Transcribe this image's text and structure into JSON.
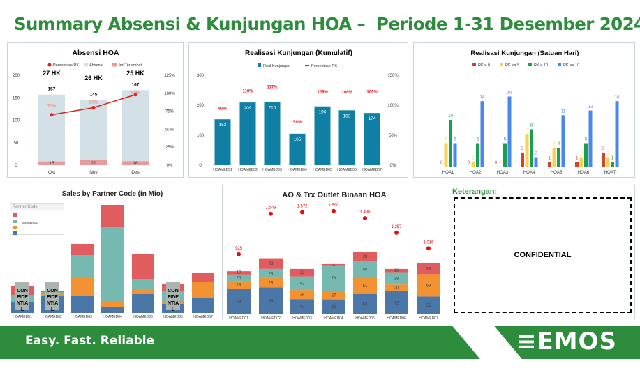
{
  "header": {
    "title": "Summary Absensi & Kunjungan HOA –  Periode 1-31 Desember 2024"
  },
  "footer": {
    "slogan": "Easy. Fast. Reliable",
    "logo": "EMOS",
    "brand_color": "#2d8d3c"
  },
  "keterangan": {
    "title": "Keterangan:",
    "content": "CONFIDENTIAL"
  },
  "chart_data": [
    {
      "id": "absensi",
      "type": "bar",
      "title": "Absensi HOA",
      "categories": [
        "Okt",
        "Nov",
        "Des"
      ],
      "hk": [
        "27 HK",
        "26 HK",
        "25 HK"
      ],
      "legend": [
        "Persentase RK",
        "Absensi",
        "Jml Terlambat"
      ],
      "series": [
        {
          "name": "Absensi",
          "values": [
            157,
            145,
            167
          ],
          "color": "#d3e0e5"
        },
        {
          "name": "Jml Terlambat",
          "values": [
            15,
            21,
            16
          ],
          "color": "#eb9a9c"
        },
        {
          "name": "Persentase RK",
          "values": [
            70,
            80,
            98
          ],
          "unit": "%",
          "color": "#e01e1e"
        }
      ],
      "ylim": [
        0,
        200
      ],
      "yticks": [
        0,
        50,
        100,
        150,
        200
      ],
      "y2lim": [
        0,
        125
      ],
      "y2ticks": [
        "0%",
        "25%",
        "50%",
        "75%",
        "100%",
        "125%"
      ]
    },
    {
      "id": "kumulatif",
      "type": "bar",
      "title": "Realisasi Kunjungan (Kumulatif)",
      "categories": [
        "HOAMED01",
        "HOAMED02",
        "HOAMED03",
        "HOAMED04",
        "HOAMED05",
        "HOAMED06",
        "HOAMED07"
      ],
      "legend": [
        "Real Kunjungan",
        "Persentase RK"
      ],
      "series": [
        {
          "name": "Real Kunjungan",
          "values": [
            153,
            209,
            210,
            105,
            196,
            183,
            174
          ],
          "color": "#0f7fa3"
        },
        {
          "name": "Persentase RK",
          "values": [
            81,
            110,
            117,
            58,
            109,
            108,
            109
          ],
          "unit": "%",
          "color": "#e01e1e"
        }
      ],
      "ylim": [
        0,
        300
      ],
      "yticks": [
        0,
        100,
        200,
        300
      ],
      "y2lim": [
        0,
        150
      ],
      "y2ticks": [
        "0%",
        "50%",
        "100%",
        "150%"
      ]
    },
    {
      "id": "satuan_hari",
      "type": "bar",
      "title": "Realisasi Kunjungan (Satuan Hari)",
      "categories": [
        "HOA1",
        "HOA2",
        "HOA3",
        "HOA4",
        "HOA5",
        "HOA6",
        "HOA7"
      ],
      "series": [
        {
          "name": "RK = 0",
          "values": [
            0,
            0,
            0,
            3,
            1,
            1,
            3
          ],
          "color": "#d6402b"
        },
        {
          "name": "RK <= 5",
          "values": [
            5,
            1,
            0,
            7,
            4,
            2,
            2
          ],
          "color": "#fcd054"
        },
        {
          "name": "RK < 10",
          "values": [
            10,
            5,
            5,
            8,
            4,
            5,
            1
          ],
          "color": "#16a150"
        },
        {
          "name": "RK >= 10",
          "values": [
            5,
            14,
            15,
            2,
            11,
            12,
            14
          ],
          "color": "#4a87ea"
        }
      ],
      "ylim": [
        0,
        15
      ]
    },
    {
      "id": "sales",
      "type": "bar",
      "stacked": true,
      "title": "Sales by Partner Code (in Mio)",
      "legend_title": "Partner Code",
      "legend_label": "CONFIDENTIAL",
      "confidential_label": "CON FIDE NTIA L",
      "categories": [
        "HOAMED01",
        "HOAMED02",
        "HOAMED03",
        "HOAMED04",
        "HOAMED05",
        "HOAMED06",
        "HOAMED07"
      ],
      "confidential_bars": [
        0,
        1,
        5
      ],
      "series": [
        {
          "values": [
            15,
            24,
            24,
            8,
            27,
            13,
            21
          ],
          "color": "#4a77a8"
        },
        {
          "values": [
            2,
            4,
            26,
            9,
            7,
            2,
            24
          ],
          "color": "#f29232"
        },
        {
          "values": [
            9,
            2,
            33,
            107,
            14,
            17,
            0
          ],
          "color": "#75b9b1"
        },
        {
          "values": [
            12,
            2,
            16,
            31,
            36,
            10,
            13
          ],
          "color": "#e15c5f"
        }
      ]
    },
    {
      "id": "ao_trx",
      "type": "bar",
      "stacked": true,
      "title": "AO & Trx Outlet Binaan HOA",
      "categories": [
        "HOAMED01",
        "HOAMED02",
        "HOAMED03",
        "HOAMED04",
        "HOAMED05",
        "HOAMED06",
        "HOAMED07"
      ],
      "series": [
        {
          "values": [
            78,
            83,
            47,
            46,
            63,
            72,
            55
          ],
          "color": "#4a77a8"
        },
        {
          "values": [
            25,
            29,
            28,
            27,
            51,
            20,
            69
          ],
          "color": "#f29232"
        },
        {
          "values": [
            20,
            28,
            42,
            78,
            50,
            38,
            0
          ],
          "color": "#75b9b1"
        },
        {
          "values": [
            10,
            33,
            23,
            4,
            28,
            10,
            33
          ],
          "color": "#e15c5f"
        },
        {
          "values": [
            925,
            1548,
            1572,
            1590,
            1480,
            1257,
            1016
          ],
          "labels": [
            "925",
            "1.548",
            "1.572",
            "1.590",
            "1.480",
            "1.257",
            "1.016"
          ],
          "color": "#e01010",
          "type": "scatter"
        }
      ]
    }
  ]
}
